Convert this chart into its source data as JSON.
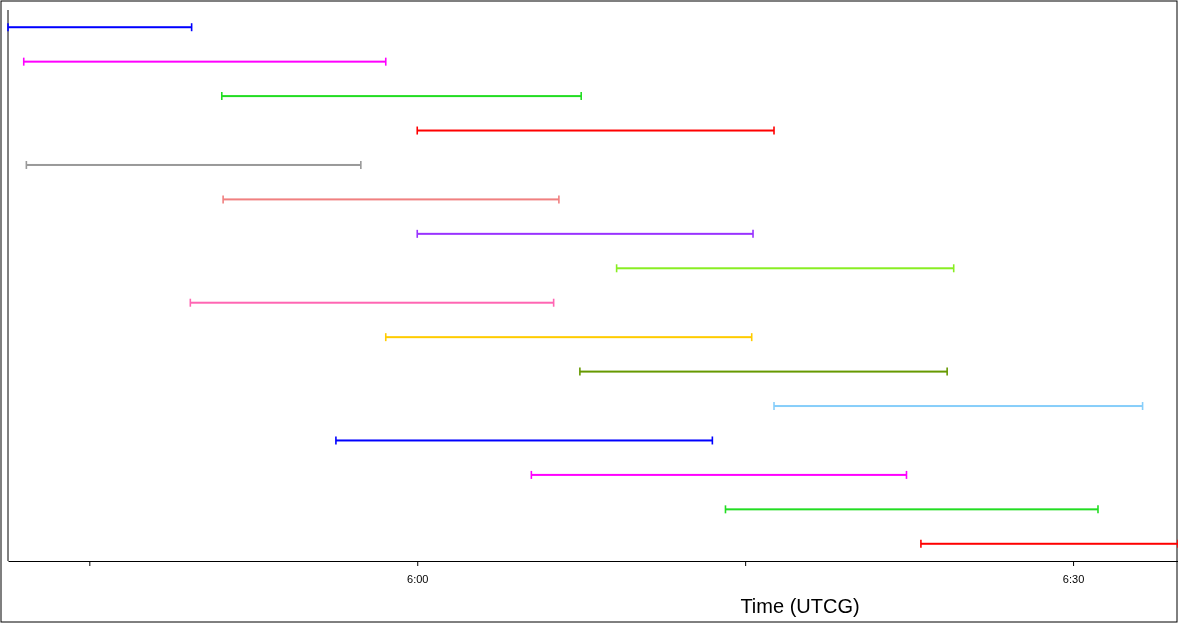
{
  "chart_data": {
    "type": "bar",
    "orientation": "horizontal",
    "xlabel": "Time (UTCG)",
    "categories": [
      null,
      null,
      null,
      null,
      null,
      null,
      null,
      null,
      null,
      null,
      null,
      null,
      null,
      null,
      null,
      null
    ],
    "base": [
      5.688,
      5.7,
      5.851,
      6.0,
      5.702,
      5.852,
      6.0,
      6.152,
      5.827,
      5.976,
      6.124,
      6.272,
      5.938,
      6.087,
      6.235,
      6.384
    ],
    "values": [
      0.14,
      0.276,
      0.274,
      0.272,
      0.255,
      0.256,
      0.256,
      0.257,
      0.277,
      0.279,
      0.28,
      0.281,
      0.287,
      0.286,
      0.284,
      0.196
    ],
    "colors": [
      "#0000ff",
      "#ff00ff",
      "#22dd22",
      "#ff0000",
      "#999999",
      "#f08080",
      "#9933ff",
      "#88ee22",
      "#ff66b3",
      "#ffcc00",
      "#669900",
      "#87cefa",
      "#0000ff",
      "#ff00ff",
      "#22dd22",
      "#ff0000"
    ],
    "xlim": [
      5.688,
      6.58
    ],
    "xticks": [
      {
        "value": 5.75,
        "label": null
      },
      {
        "value": 6,
        "label": "6:00"
      },
      {
        "value": 6.25,
        "label": null
      },
      {
        "value": 6.5,
        "label": "6:30"
      }
    ],
    "tick_labels": "x",
    "grid": false
  }
}
